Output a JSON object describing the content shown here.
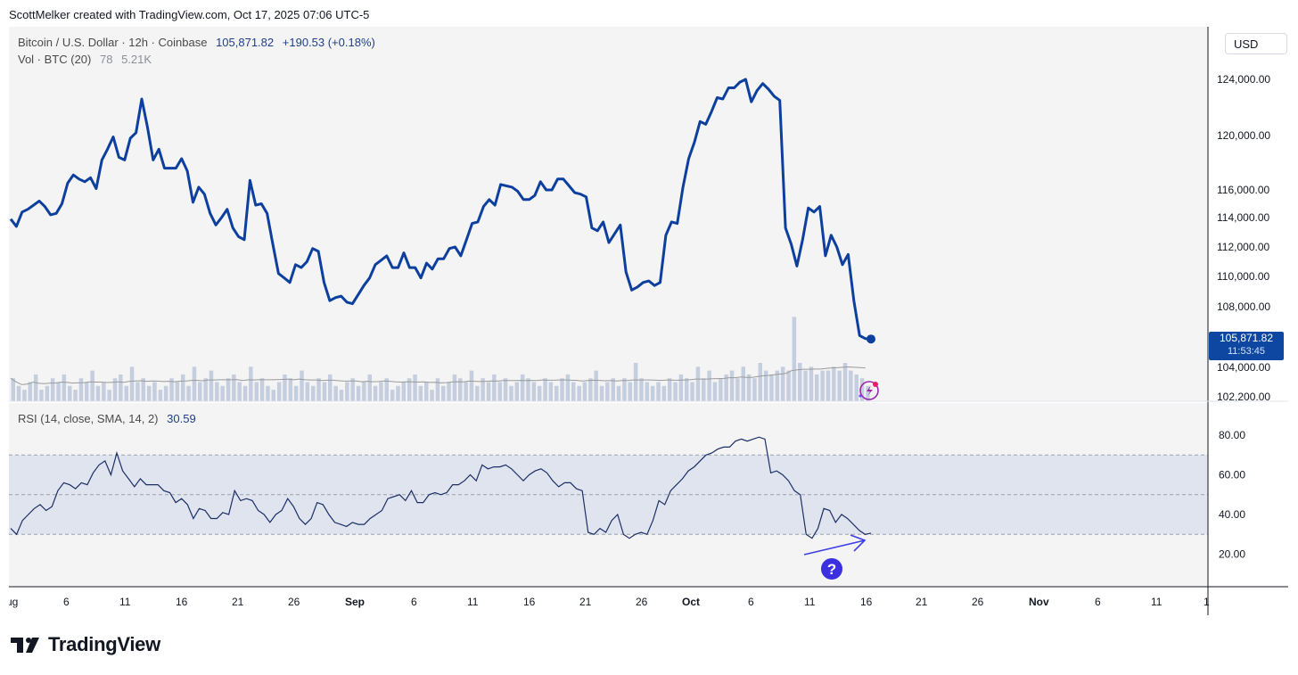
{
  "header": {
    "text": "ScottMelker created with TradingView.com, Oct 17, 2025 07:06 UTC-5"
  },
  "legend": {
    "symbol": "Bitcoin / U.S. Dollar · 12h · Coinbase",
    "last": "105,871.82",
    "change": "+190.53 (+0.18%)",
    "vol_label": "Vol · BTC (20)",
    "vol_v1": "78",
    "vol_v2": "5.21K",
    "rsi_label": "RSI (14, close, SMA, 14, 2)",
    "rsi_value": "30.59"
  },
  "currency_button": "USD",
  "price_tag": {
    "price": "105,871.82",
    "countdown": "11:53:45"
  },
  "footer": {
    "brand": "TradingView"
  },
  "colors": {
    "price_line": "#0d3f9e",
    "rsi_line": "#1c2f66",
    "rsi_band": "#dfe4ee",
    "volume": "#bcc7da",
    "arrow": "#3b3ee6",
    "price_tag": "#0d47a1"
  },
  "icons": [
    "flash-alert-icon",
    "question-icon",
    "tradingview-logo-icon"
  ],
  "chart_data": [
    {
      "type": "line",
      "title": "Bitcoin / U.S. Dollar · 12h · Coinbase",
      "y_ticks": [
        "124,000.00",
        "120,000.00",
        "116,000.00",
        "114,000.00",
        "112,000.00",
        "110,000.00",
        "108,000.00",
        "104,000.00",
        "102,200.00"
      ],
      "x_ticks": [
        "ug",
        "6",
        "11",
        "16",
        "21",
        "26",
        "Sep",
        "6",
        "11",
        "16",
        "21",
        "26",
        "Oct",
        "6",
        "11",
        "16",
        "21",
        "26",
        "Nov",
        "6",
        "11",
        "1"
      ],
      "ylim": [
        102200,
        125800
      ],
      "series": [
        {
          "name": "Bitcoin / U.S. Dollar",
          "values": [
            113900,
            113400,
            114400,
            114600,
            114900,
            115200,
            114800,
            114200,
            114300,
            115000,
            116500,
            117100,
            116800,
            116600,
            116900,
            116100,
            118200,
            119000,
            119900,
            118400,
            118200,
            119800,
            120200,
            122600,
            120600,
            118200,
            119000,
            117600,
            117600,
            117600,
            118300,
            117400,
            115100,
            116200,
            115700,
            114300,
            113500,
            114000,
            114600,
            113300,
            112700,
            112500,
            116700,
            114900,
            115000,
            114300,
            112200,
            110200,
            109900,
            109600,
            110800,
            110600,
            111000,
            111900,
            111700,
            109600,
            108400,
            108600,
            108700,
            108300,
            108200,
            108800,
            109400,
            109900,
            110800,
            111100,
            111400,
            110600,
            110600,
            111600,
            110600,
            110600,
            109900,
            110900,
            110500,
            111200,
            111200,
            111900,
            112000,
            111400,
            112500,
            113600,
            113700,
            114800,
            115300,
            114900,
            116400,
            116300,
            116200,
            115900,
            115300,
            115300,
            115600,
            116600,
            116000,
            116000,
            116800,
            116800,
            116300,
            115800,
            115700,
            115500,
            113300,
            113100,
            113700,
            112300,
            112900,
            113500,
            110300,
            109100,
            109300,
            109600,
            109700,
            109400,
            109600,
            112800,
            113700,
            113600,
            116200,
            118300,
            119500,
            121000,
            120800,
            121700,
            122700,
            122600,
            123400,
            123400,
            124200,
            124000,
            122400,
            123200,
            123700,
            123300,
            122800,
            122500,
            113300,
            112200,
            110700,
            112500,
            114700,
            114400,
            114800,
            111400,
            112800,
            112000,
            110800,
            111500,
            108400,
            106100,
            105900,
            105871
          ]
        }
      ]
    },
    {
      "type": "bar",
      "title": "Vol · BTC (20)",
      "values": [
        6,
        4,
        3,
        5,
        7,
        3,
        4,
        6,
        5,
        7,
        4,
        3,
        6,
        5,
        8,
        4,
        5,
        3,
        6,
        7,
        4,
        9,
        5,
        6,
        4,
        5,
        3,
        4,
        6,
        5,
        7,
        4,
        9,
        5,
        6,
        8,
        5,
        4,
        6,
        7,
        5,
        4,
        9,
        5,
        6,
        4,
        3,
        5,
        7,
        6,
        4,
        8,
        5,
        4,
        6,
        5,
        7,
        4,
        3,
        5,
        6,
        4,
        5,
        7,
        4,
        5,
        6,
        3,
        4,
        5,
        6,
        7,
        4,
        5,
        3,
        6,
        4,
        5,
        7,
        6,
        5,
        8,
        4,
        6,
        5,
        7,
        5,
        6,
        4,
        5,
        7,
        6,
        5,
        4,
        6,
        5,
        4,
        6,
        7,
        5,
        4,
        5,
        6,
        8,
        4,
        5,
        6,
        4,
        6,
        5,
        10,
        6,
        5,
        4,
        5,
        4,
        6,
        5,
        7,
        6,
        5,
        9,
        6,
        8,
        5,
        6,
        7,
        8,
        6,
        9,
        7,
        6,
        10,
        8,
        7,
        8,
        9,
        8,
        22,
        10,
        8,
        9,
        7,
        8,
        8,
        9,
        8,
        10,
        8,
        7,
        6,
        4
      ],
      "ma_approx": 5
    },
    {
      "type": "line",
      "title": "RSI (14, close, SMA, 14, 2)",
      "y_ticks": [
        "80.00",
        "60.00",
        "40.00",
        "20.00"
      ],
      "ylim": [
        0,
        90
      ],
      "bands": {
        "upper": 70,
        "middle": 50,
        "lower": 30
      },
      "series": [
        {
          "name": "RSI",
          "values": [
            33,
            30,
            37,
            40,
            43,
            45,
            42,
            44,
            52,
            56,
            55,
            53,
            56,
            55,
            61,
            65,
            67,
            60,
            71,
            62,
            58,
            54,
            58,
            55,
            55,
            55,
            52,
            51,
            46,
            48,
            45,
            38,
            43,
            42,
            38,
            38,
            41,
            40,
            52,
            47,
            48,
            47,
            42,
            40,
            36,
            40,
            42,
            48,
            44,
            38,
            35,
            38,
            46,
            45,
            40,
            36,
            35,
            34,
            36,
            35,
            35,
            38,
            40,
            42,
            48,
            49,
            50,
            47,
            52,
            46,
            46,
            50,
            51,
            50,
            51,
            55,
            55,
            57,
            60,
            57,
            65,
            63,
            64,
            64,
            65,
            63,
            60,
            57,
            60,
            62,
            63,
            61,
            57,
            54,
            56,
            56,
            53,
            52,
            31,
            30,
            33,
            31,
            37,
            40,
            30,
            28,
            30,
            31,
            30,
            37,
            47,
            45,
            52,
            55,
            58,
            62,
            64,
            67,
            70,
            71,
            73,
            74,
            74,
            77,
            78,
            77,
            78,
            79,
            78,
            61,
            62,
            60,
            57,
            52,
            50,
            30,
            28,
            33,
            43,
            42,
            36,
            40,
            38,
            35,
            32,
            30,
            30.59
          ]
        }
      ],
      "annotation": "?"
    }
  ]
}
